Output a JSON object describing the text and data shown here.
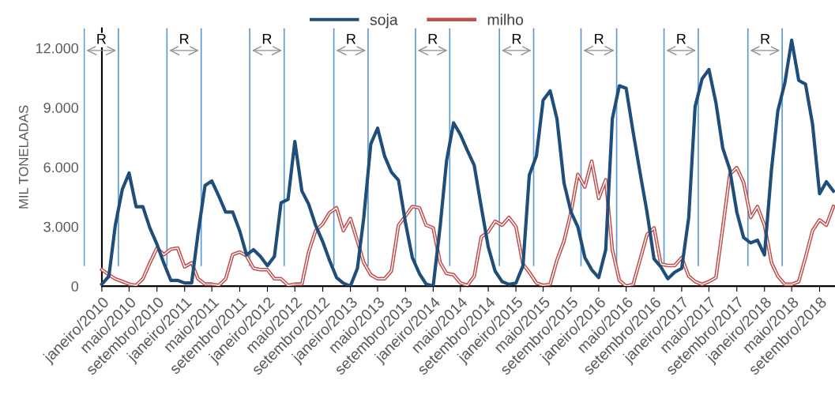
{
  "chart_data": {
    "type": "line",
    "ylabel": "MIL TONELADAS",
    "x": [
      "2010-01",
      "2010-02",
      "2010-03",
      "2010-04",
      "2010-05",
      "2010-06",
      "2010-07",
      "2010-08",
      "2010-09",
      "2010-10",
      "2010-11",
      "2010-12",
      "2011-01",
      "2011-02",
      "2011-03",
      "2011-04",
      "2011-05",
      "2011-06",
      "2011-07",
      "2011-08",
      "2011-09",
      "2011-10",
      "2011-11",
      "2011-12",
      "2012-01",
      "2012-02",
      "2012-03",
      "2012-04",
      "2012-05",
      "2012-06",
      "2012-07",
      "2012-08",
      "2012-09",
      "2012-10",
      "2012-11",
      "2012-12",
      "2013-01",
      "2013-02",
      "2013-03",
      "2013-04",
      "2013-05",
      "2013-06",
      "2013-07",
      "2013-08",
      "2013-09",
      "2013-10",
      "2013-11",
      "2013-12",
      "2014-01",
      "2014-02",
      "2014-03",
      "2014-04",
      "2014-05",
      "2014-06",
      "2014-07",
      "2014-08",
      "2014-09",
      "2014-10",
      "2014-11",
      "2014-12",
      "2015-01",
      "2015-02",
      "2015-03",
      "2015-04",
      "2015-05",
      "2015-06",
      "2015-07",
      "2015-08",
      "2015-09",
      "2015-10",
      "2015-11",
      "2015-12",
      "2016-01",
      "2016-02",
      "2016-03",
      "2016-04",
      "2016-05",
      "2016-06",
      "2016-07",
      "2016-08",
      "2016-09",
      "2016-10",
      "2016-11",
      "2016-12",
      "2017-01",
      "2017-02",
      "2017-03",
      "2017-04",
      "2017-05",
      "2017-06",
      "2017-07",
      "2017-08",
      "2017-09",
      "2017-10",
      "2017-11",
      "2017-12",
      "2018-01",
      "2018-02",
      "2018-03",
      "2018-04",
      "2018-05",
      "2018-06",
      "2018-07",
      "2018-08",
      "2018-09",
      "2018-10",
      "2018-11"
    ],
    "series": [
      {
        "name": "soja",
        "color": "#1f4e79",
        "values": [
          100,
          500,
          3050,
          4870,
          5700,
          4000,
          4000,
          2920,
          2110,
          1170,
          290,
          290,
          160,
          160,
          2650,
          5070,
          5300,
          4530,
          3730,
          3730,
          2780,
          1570,
          1840,
          1500,
          1030,
          1500,
          4200,
          4370,
          7290,
          4800,
          4130,
          3050,
          2240,
          1300,
          430,
          150,
          0,
          900,
          3460,
          7170,
          7960,
          6550,
          5740,
          5340,
          3190,
          1440,
          640,
          100,
          0,
          3030,
          6310,
          8230,
          7640,
          6830,
          6090,
          4000,
          1970,
          760,
          230,
          90,
          150,
          1030,
          5600,
          6550,
          9370,
          9840,
          8430,
          5200,
          3730,
          2990,
          1440,
          830,
          430,
          1840,
          8430,
          10100,
          9970,
          7750,
          5740,
          3730,
          1370,
          970,
          370,
          700,
          900,
          3460,
          9040,
          10450,
          10920,
          9240,
          6960,
          5880,
          3730,
          2450,
          2180,
          2320,
          1570,
          5880,
          8840,
          10250,
          12400,
          10370,
          10180,
          8160,
          4660,
          5260,
          4790
        ]
      },
      {
        "name": "milho",
        "color": "#c0504d",
        "values": [
          830,
          570,
          370,
          240,
          100,
          40,
          370,
          1180,
          1920,
          1590,
          1860,
          1920,
          970,
          1180,
          370,
          100,
          100,
          40,
          370,
          1590,
          1720,
          1520,
          900,
          830,
          830,
          370,
          370,
          40,
          100,
          100,
          1720,
          2800,
          3140,
          3700,
          3950,
          2800,
          3410,
          2270,
          1180,
          570,
          370,
          370,
          770,
          3070,
          3540,
          4010,
          3950,
          3070,
          2940,
          1180,
          640,
          570,
          160,
          40,
          500,
          2470,
          2740,
          3270,
          3070,
          3460,
          3000,
          1110,
          700,
          160,
          40,
          100,
          1310,
          2270,
          3740,
          5630,
          5000,
          6300,
          4420,
          5360,
          1840,
          290,
          0,
          90,
          1310,
          2590,
          2940,
          1110,
          1040,
          1040,
          1440,
          500,
          230,
          90,
          230,
          430,
          2940,
          5630,
          5970,
          5230,
          3460,
          4010,
          3070,
          1180,
          500,
          90,
          90,
          230,
          1440,
          2800,
          3340,
          3070,
          4010
        ]
      }
    ],
    "xlim": [
      "2009-10-12",
      "2018-11-08"
    ],
    "xticks": [
      {
        "value": "2010-01",
        "label": "janeiro/2010"
      },
      {
        "value": "2010-05",
        "label": "maio/2010"
      },
      {
        "value": "2010-09",
        "label": "setembro/2010"
      },
      {
        "value": "2011-01",
        "label": "janeiro/2011"
      },
      {
        "value": "2011-05",
        "label": "maio/2011"
      },
      {
        "value": "2011-09",
        "label": "setembro/2011"
      },
      {
        "value": "2012-01",
        "label": "janeiro/2012"
      },
      {
        "value": "2012-05",
        "label": "maio/2012"
      },
      {
        "value": "2012-09",
        "label": "setembro/2012"
      },
      {
        "value": "2013-01",
        "label": "janeiro/2013"
      },
      {
        "value": "2013-05",
        "label": "maio/2013"
      },
      {
        "value": "2013-09",
        "label": "setembro/2013"
      },
      {
        "value": "2014-01",
        "label": "janeiro/2014"
      },
      {
        "value": "2014-05",
        "label": "maio/2014"
      },
      {
        "value": "2014-09",
        "label": "setembro/2014"
      },
      {
        "value": "2015-01",
        "label": "janeiro/2015"
      },
      {
        "value": "2015-05",
        "label": "maio/2015"
      },
      {
        "value": "2015-09",
        "label": "setembro/2015"
      },
      {
        "value": "2016-01",
        "label": "janeiro/2016"
      },
      {
        "value": "2016-05",
        "label": "maio/2016"
      },
      {
        "value": "2016-09",
        "label": "setembro/2016"
      },
      {
        "value": "2017-01",
        "label": "janeiro/2017"
      },
      {
        "value": "2017-05",
        "label": "maio/2017"
      },
      {
        "value": "2017-09",
        "label": "setembro/2017"
      },
      {
        "value": "2018-01",
        "label": "janeiro/2018"
      },
      {
        "value": "2018-05",
        "label": "maio/2018"
      },
      {
        "value": "2018-09",
        "label": "setembro/2018"
      }
    ],
    "ylim": [
      0,
      13000
    ],
    "yticks": [
      {
        "value": 0,
        "label": "0"
      },
      {
        "value": 3000,
        "label": "3.000"
      },
      {
        "value": 6000,
        "label": "6.000"
      },
      {
        "value": 9000,
        "label": "9.000"
      },
      {
        "value": 12000,
        "label": "12.000"
      }
    ],
    "ref_lines": [
      {
        "axis": "x",
        "value": "2009-10-15",
        "color": "#5b9bd5"
      },
      {
        "axis": "x",
        "value": "2010-03-15",
        "color": "#5b9bd5"
      },
      {
        "axis": "x",
        "value": "2010-10-15",
        "color": "#5b9bd5"
      },
      {
        "axis": "x",
        "value": "2011-03-15",
        "color": "#5b9bd5"
      },
      {
        "axis": "x",
        "value": "2011-10-15",
        "color": "#5b9bd5"
      },
      {
        "axis": "x",
        "value": "2012-03-15",
        "color": "#5b9bd5"
      },
      {
        "axis": "x",
        "value": "2012-10-20",
        "color": "#5b9bd5"
      },
      {
        "axis": "x",
        "value": "2013-03-20",
        "color": "#5b9bd5"
      },
      {
        "axis": "x",
        "value": "2013-10-15",
        "color": "#5b9bd5"
      },
      {
        "axis": "x",
        "value": "2014-03-15",
        "color": "#5b9bd5"
      },
      {
        "axis": "x",
        "value": "2014-10-20",
        "color": "#5b9bd5"
      },
      {
        "axis": "x",
        "value": "2015-03-20",
        "color": "#5b9bd5"
      },
      {
        "axis": "x",
        "value": "2015-10-15",
        "color": "#5b9bd5"
      },
      {
        "axis": "x",
        "value": "2016-03-20",
        "color": "#5b9bd5"
      },
      {
        "axis": "x",
        "value": "2016-10-15",
        "color": "#5b9bd5"
      },
      {
        "axis": "x",
        "value": "2017-03-15",
        "color": "#5b9bd5"
      },
      {
        "axis": "x",
        "value": "2017-10-20",
        "color": "#5b9bd5"
      },
      {
        "axis": "x",
        "value": "2018-03-20",
        "color": "#5b9bd5"
      }
    ],
    "annotations": [
      {
        "text": "R",
        "x": "2009-12-30",
        "y": 12400
      },
      {
        "text": "R",
        "x": "2010-12-30",
        "y": 12400
      },
      {
        "text": "R",
        "x": "2011-12-30",
        "y": 12400
      },
      {
        "text": "R",
        "x": "2013-01-04",
        "y": 12400
      },
      {
        "text": "R",
        "x": "2013-12-30",
        "y": 12400
      },
      {
        "text": "R",
        "x": "2015-01-04",
        "y": 12400
      },
      {
        "text": "R",
        "x": "2016-01-02",
        "y": 12400
      },
      {
        "text": "R",
        "x": "2016-12-30",
        "y": 12400
      },
      {
        "text": "R",
        "x": "2018-01-04",
        "y": 12400
      }
    ],
    "legend": "top",
    "marker": "none",
    "line_style": "solid"
  }
}
